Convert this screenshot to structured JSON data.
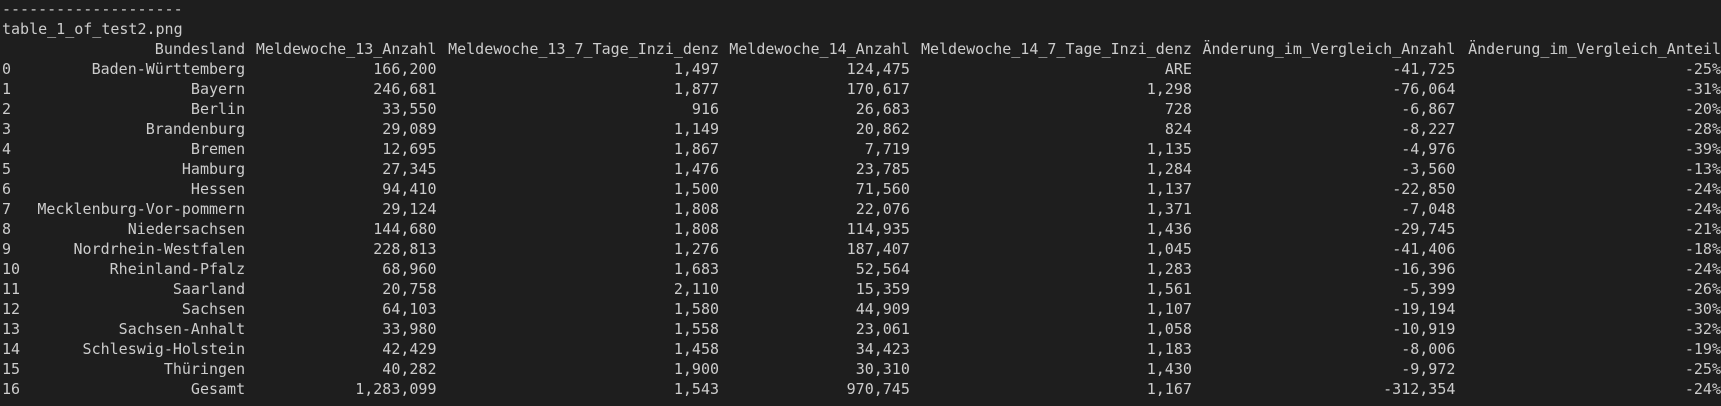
{
  "terminal": {
    "separator": "--------------------",
    "filename": "table_1_of_test2.png"
  },
  "table": {
    "columns": [
      "Bundesland",
      "Meldewoche_13_Anzahl",
      "Meldewoche_13_7_Tage_Inzi_denz",
      "Meldewoche_14_Anzahl",
      "Meldewoche_14_7_Tage_Inzi_denz",
      "Änderung_im_Vergleich_Anzahl",
      "Änderung_im_Vergleich_Anteil"
    ],
    "rows": [
      {
        "index": "0",
        "cells": [
          "Baden-Württemberg",
          "166,200",
          "1,497",
          "124,475",
          "ARE",
          "-41,725",
          "-25%"
        ]
      },
      {
        "index": "1",
        "cells": [
          "Bayern",
          "246,681",
          "1,877",
          "170,617",
          "1,298",
          "-76,064",
          "-31%"
        ]
      },
      {
        "index": "2",
        "cells": [
          "Berlin",
          "33,550",
          "916",
          "26,683",
          "728",
          "-6,867",
          "-20%"
        ]
      },
      {
        "index": "3",
        "cells": [
          "Brandenburg",
          "29,089",
          "1,149",
          "20,862",
          "824",
          "-8,227",
          "-28%"
        ]
      },
      {
        "index": "4",
        "cells": [
          "Bremen",
          "12,695",
          "1,867",
          "7,719",
          "1,135",
          "-4,976",
          "-39%"
        ]
      },
      {
        "index": "5",
        "cells": [
          "Hamburg",
          "27,345",
          "1,476",
          "23,785",
          "1,284",
          "-3,560",
          "-13%"
        ]
      },
      {
        "index": "6",
        "cells": [
          "Hessen",
          "94,410",
          "1,500",
          "71,560",
          "1,137",
          "-22,850",
          "-24%"
        ]
      },
      {
        "index": "7",
        "cells": [
          "Mecklenburg-Vor-pommern",
          "29,124",
          "1,808",
          "22,076",
          "1,371",
          "-7,048",
          "-24%"
        ]
      },
      {
        "index": "8",
        "cells": [
          "Niedersachsen",
          "144,680",
          "1,808",
          "114,935",
          "1,436",
          "-29,745",
          "-21%"
        ]
      },
      {
        "index": "9",
        "cells": [
          "Nordrhein-Westfalen",
          "228,813",
          "1,276",
          "187,407",
          "1,045",
          "-41,406",
          "-18%"
        ]
      },
      {
        "index": "10",
        "cells": [
          "Rheinland-Pfalz",
          "68,960",
          "1,683",
          "52,564",
          "1,283",
          "-16,396",
          "-24%"
        ]
      },
      {
        "index": "11",
        "cells": [
          "Saarland",
          "20,758",
          "2,110",
          "15,359",
          "1,561",
          "-5,399",
          "-26%"
        ]
      },
      {
        "index": "12",
        "cells": [
          "Sachsen",
          "64,103",
          "1,580",
          "44,909",
          "1,107",
          "-19,194",
          "-30%"
        ]
      },
      {
        "index": "13",
        "cells": [
          "Sachsen-Anhalt",
          "33,980",
          "1,558",
          "23,061",
          "1,058",
          "-10,919",
          "-32%"
        ]
      },
      {
        "index": "14",
        "cells": [
          "Schleswig-Holstein",
          "42,429",
          "1,458",
          "34,423",
          "1,183",
          "-8,006",
          "-19%"
        ]
      },
      {
        "index": "15",
        "cells": [
          "Thüringen",
          "40,282",
          "1,900",
          "30,310",
          "1,430",
          "-9,972",
          "-25%"
        ]
      },
      {
        "index": "16",
        "cells": [
          "Gesamt",
          "1,283,099",
          "1,543",
          "970,745",
          "1,167",
          "-312,354",
          "-24%"
        ]
      }
    ]
  },
  "colors": {
    "background": "#1e1e1e",
    "text": "#cccccc"
  }
}
